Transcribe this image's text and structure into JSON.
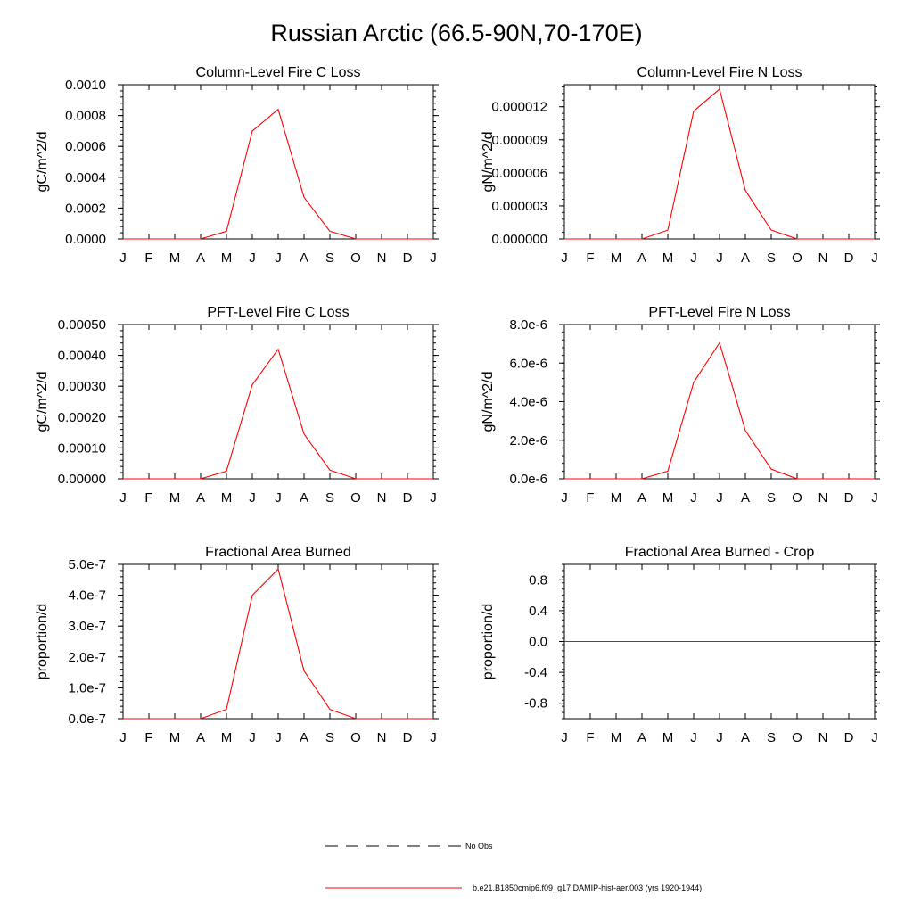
{
  "page_title": "Russian Arctic (66.5-90N,70-170E)",
  "legend": {
    "entries": [
      {
        "label": "No Obs",
        "style": "dashed",
        "color": "#000000"
      },
      {
        "label": "b.e21.B1850cmip6.f09_g17.DAMIP-hist-aer.003 (yrs 1920-1944)",
        "style": "solid",
        "color": "#ff0000"
      }
    ]
  },
  "chart_data": [
    {
      "type": "line",
      "title": "Column-Level Fire C Loss",
      "ylabel": "gC/m^2/d",
      "xlabel": "",
      "categories": [
        "J",
        "F",
        "M",
        "A",
        "M",
        "J",
        "J",
        "A",
        "S",
        "O",
        "N",
        "D",
        "J"
      ],
      "ylim": [
        0,
        0.001
      ],
      "yticks": [
        "0.0000",
        "0.0002",
        "0.0004",
        "0.0006",
        "0.0008",
        "0.0010"
      ],
      "ytick_values": [
        0,
        0.0002,
        0.0004,
        0.0006,
        0.0008,
        0.001
      ],
      "series": [
        {
          "values": [
            0,
            0,
            0,
            0,
            5e-05,
            0.0007,
            0.00084,
            0.00027,
            5e-05,
            0,
            0,
            0,
            0
          ],
          "color": "#ff0000"
        }
      ]
    },
    {
      "type": "line",
      "title": "Column-Level Fire N Loss",
      "ylabel": "gN/m^2/d",
      "xlabel": "",
      "categories": [
        "J",
        "F",
        "M",
        "A",
        "M",
        "J",
        "J",
        "A",
        "S",
        "O",
        "N",
        "D",
        "J"
      ],
      "ylim": [
        0,
        1.4e-05
      ],
      "yticks": [
        "0.000000",
        "0.000003",
        "0.000006",
        "0.000009",
        "0.000012"
      ],
      "ytick_values": [
        0,
        3e-06,
        6e-06,
        9e-06,
        1.2e-05
      ],
      "series": [
        {
          "values": [
            0,
            0,
            0,
            0,
            8e-07,
            1.16e-05,
            1.36e-05,
            4.4e-06,
            8e-07,
            0,
            0,
            0,
            0
          ],
          "color": "#ff0000"
        }
      ]
    },
    {
      "type": "line",
      "title": "PFT-Level Fire C Loss",
      "ylabel": "gC/m^2/d",
      "xlabel": "",
      "categories": [
        "J",
        "F",
        "M",
        "A",
        "M",
        "J",
        "J",
        "A",
        "S",
        "O",
        "N",
        "D",
        "J"
      ],
      "ylim": [
        0,
        0.0005
      ],
      "yticks": [
        "0.00000",
        "0.00010",
        "0.00020",
        "0.00030",
        "0.00040",
        "0.00050"
      ],
      "ytick_values": [
        0,
        0.0001,
        0.0002,
        0.0003,
        0.0004,
        0.0005
      ],
      "series": [
        {
          "values": [
            0,
            0,
            0,
            0,
            2.5e-05,
            0.000305,
            0.00042,
            0.000145,
            2.8e-05,
            0,
            0,
            0,
            0
          ],
          "color": "#ff0000"
        }
      ]
    },
    {
      "type": "line",
      "title": "PFT-Level Fire N Loss",
      "ylabel": "gN/m^2/d",
      "xlabel": "",
      "categories": [
        "J",
        "F",
        "M",
        "A",
        "M",
        "J",
        "J",
        "A",
        "S",
        "O",
        "N",
        "D",
        "J"
      ],
      "ylim": [
        0,
        8e-06
      ],
      "yticks": [
        "0.0e-6",
        "2.0e-6",
        "4.0e-6",
        "6.0e-6",
        "8.0e-6"
      ],
      "ytick_values": [
        0,
        2e-06,
        4e-06,
        6e-06,
        8e-06
      ],
      "series": [
        {
          "values": [
            0,
            0,
            0,
            0,
            4e-07,
            5e-06,
            7.05e-06,
            2.5e-06,
            5e-07,
            0,
            0,
            0,
            0
          ],
          "color": "#ff0000"
        }
      ]
    },
    {
      "type": "line",
      "title": "Fractional Area Burned",
      "ylabel": "proportion/d",
      "xlabel": "",
      "categories": [
        "J",
        "F",
        "M",
        "A",
        "M",
        "J",
        "J",
        "A",
        "S",
        "O",
        "N",
        "D",
        "J"
      ],
      "ylim": [
        0,
        5e-07
      ],
      "yticks": [
        "0.0e-7",
        "1.0e-7",
        "2.0e-7",
        "3.0e-7",
        "4.0e-7",
        "5.0e-7"
      ],
      "ytick_values": [
        0,
        1e-07,
        2e-07,
        3e-07,
        4e-07,
        5e-07
      ],
      "series": [
        {
          "values": [
            0,
            0,
            0,
            0,
            3e-08,
            4e-07,
            4.85e-07,
            1.55e-07,
            3e-08,
            0,
            0,
            0,
            0
          ],
          "color": "#ff0000"
        }
      ]
    },
    {
      "type": "line",
      "title": "Fractional Area Burned - Crop",
      "ylabel": "proportion/d",
      "xlabel": "",
      "categories": [
        "J",
        "F",
        "M",
        "A",
        "M",
        "J",
        "J",
        "A",
        "S",
        "O",
        "N",
        "D",
        "J"
      ],
      "ylim": [
        -1,
        1
      ],
      "yticks": [
        "-0.8",
        "-0.4",
        "0.0",
        "0.4",
        "0.8"
      ],
      "ytick_values": [
        -0.8,
        -0.4,
        0,
        0.4,
        0.8
      ],
      "series": [
        {
          "values": [
            0,
            0,
            0,
            0,
            0,
            0,
            0,
            0,
            0,
            0,
            0,
            0,
            0
          ],
          "color": "#ff0000"
        }
      ]
    }
  ]
}
